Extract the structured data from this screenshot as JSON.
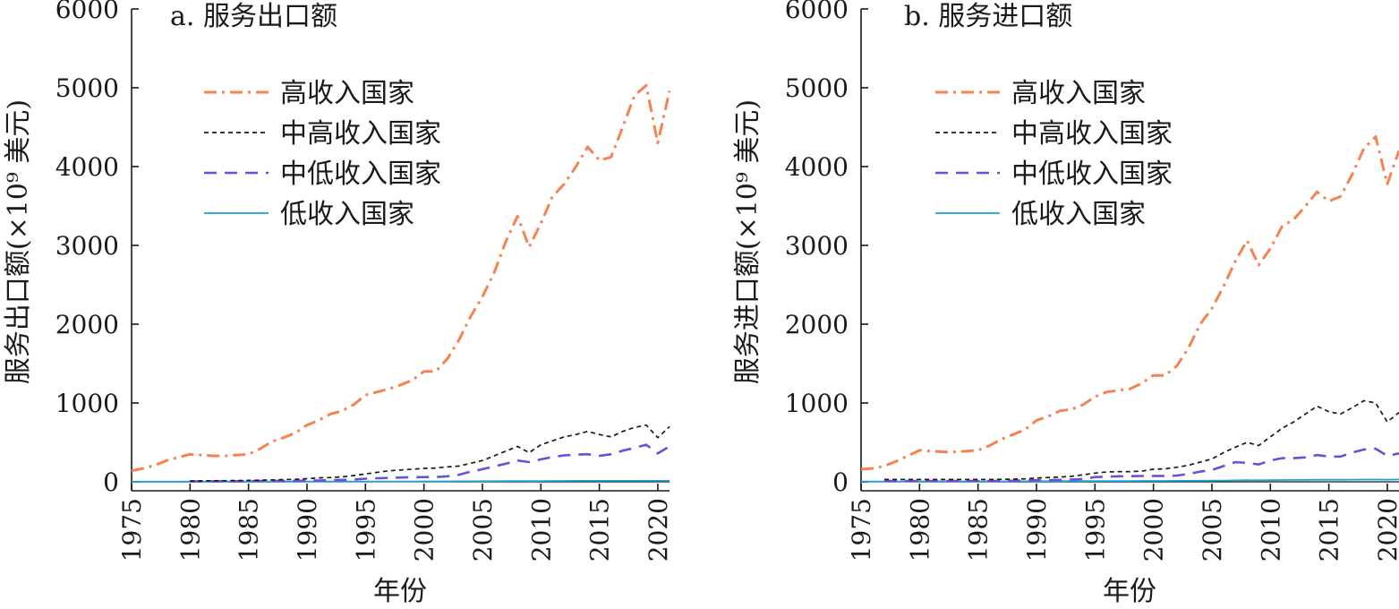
{
  "chart_data": [
    {
      "type": "line",
      "title": "a. 服务出口额",
      "xlabel": "年份",
      "ylabel": "服务出口额(×10⁹ 美元)",
      "xlim": [
        1975,
        2021
      ],
      "ylim": [
        0,
        6000
      ],
      "xticks": [
        1975,
        1980,
        1985,
        1990,
        1995,
        2000,
        2005,
        2010,
        2015,
        2020
      ],
      "yticks": [
        0,
        1000,
        2000,
        3000,
        4000,
        5000,
        6000
      ],
      "legend_position": "upper-left",
      "x": [
        1975,
        1976,
        1977,
        1978,
        1979,
        1980,
        1981,
        1982,
        1983,
        1984,
        1985,
        1986,
        1987,
        1988,
        1989,
        1990,
        1991,
        1992,
        1993,
        1994,
        1995,
        1996,
        1997,
        1998,
        1999,
        2000,
        2001,
        2002,
        2003,
        2004,
        2005,
        2006,
        2007,
        2008,
        2009,
        2010,
        2011,
        2012,
        2013,
        2014,
        2015,
        2016,
        2017,
        2018,
        2019,
        2020,
        2021
      ],
      "series": [
        {
          "name": "高收入国家",
          "color": "#f5824f",
          "dash": "dashdot",
          "values": [
            140,
            170,
            210,
            270,
            310,
            350,
            340,
            330,
            330,
            340,
            350,
            420,
            510,
            560,
            620,
            720,
            780,
            860,
            900,
            980,
            1100,
            1140,
            1180,
            1230,
            1290,
            1400,
            1400,
            1560,
            1800,
            2100,
            2350,
            2650,
            3050,
            3370,
            2980,
            3280,
            3620,
            3780,
            4000,
            4250,
            4080,
            4120,
            4500,
            4900,
            5030,
            4300,
            4960
          ]
        },
        {
          "name": "中高收入国家",
          "color": "#1a1a1a",
          "dash": "dotted",
          "values": [
            null,
            null,
            null,
            null,
            null,
            10,
            12,
            14,
            15,
            16,
            18,
            20,
            24,
            28,
            32,
            40,
            50,
            55,
            62,
            80,
            100,
            120,
            140,
            150,
            160,
            170,
            175,
            190,
            200,
            235,
            270,
            330,
            390,
            450,
            370,
            470,
            520,
            570,
            600,
            640,
            600,
            570,
            640,
            690,
            720,
            560,
            700
          ]
        },
        {
          "name": "中低收入国家",
          "color": "#6a4fd8",
          "dash": "dashed",
          "values": [
            null,
            null,
            null,
            null,
            null,
            5,
            6,
            7,
            8,
            8,
            9,
            10,
            11,
            12,
            13,
            15,
            17,
            20,
            24,
            30,
            40,
            45,
            50,
            55,
            58,
            60,
            60,
            70,
            90,
            130,
            160,
            195,
            230,
            270,
            250,
            285,
            315,
            335,
            345,
            350,
            330,
            350,
            395,
            430,
            470,
            360,
            450
          ]
        },
        {
          "name": "低收入国家",
          "color": "#1fa0d8",
          "dash": "solid",
          "values": [
            2,
            2,
            2,
            2,
            2,
            3,
            3,
            3,
            3,
            3,
            3,
            3,
            3,
            3,
            3,
            4,
            4,
            4,
            4,
            4,
            5,
            5,
            5,
            5,
            5,
            6,
            6,
            6,
            7,
            7,
            8,
            8,
            9,
            10,
            9,
            10,
            11,
            11,
            12,
            12,
            12,
            12,
            13,
            13,
            14,
            12,
            14
          ]
        }
      ]
    },
    {
      "type": "line",
      "title": "b. 服务进口额",
      "xlabel": "年份",
      "ylabel": "服务进口额(×10⁹ 美元)",
      "xlim": [
        1975,
        2021
      ],
      "ylim": [
        0,
        6000
      ],
      "xticks": [
        1975,
        1980,
        1985,
        1990,
        1995,
        2000,
        2005,
        2010,
        2015,
        2020
      ],
      "yticks": [
        0,
        1000,
        2000,
        3000,
        4000,
        5000,
        6000
      ],
      "legend_position": "upper-left",
      "x": [
        1975,
        1976,
        1977,
        1978,
        1979,
        1980,
        1981,
        1982,
        1983,
        1984,
        1985,
        1986,
        1987,
        1988,
        1989,
        1990,
        1991,
        1992,
        1993,
        1994,
        1995,
        1996,
        1997,
        1998,
        1999,
        2000,
        2001,
        2002,
        2003,
        2004,
        2005,
        2006,
        2007,
        2008,
        2009,
        2010,
        2011,
        2012,
        2013,
        2014,
        2015,
        2016,
        2017,
        2018,
        2019,
        2020,
        2021
      ],
      "series": [
        {
          "name": "高收入国家",
          "color": "#f5824f",
          "dash": "dashdot",
          "values": [
            160,
            170,
            200,
            260,
            330,
            400,
            390,
            380,
            380,
            390,
            400,
            460,
            540,
            600,
            660,
            780,
            830,
            900,
            920,
            980,
            1080,
            1140,
            1160,
            1180,
            1250,
            1350,
            1350,
            1470,
            1700,
            2000,
            2200,
            2480,
            2800,
            3060,
            2750,
            2960,
            3240,
            3330,
            3500,
            3680,
            3560,
            3620,
            3900,
            4230,
            4380,
            3780,
            4200
          ]
        },
        {
          "name": "中高收入国家",
          "color": "#1a1a1a",
          "dash": "dotted",
          "values": [
            null,
            null,
            30,
            30,
            30,
            30,
            30,
            30,
            30,
            30,
            30,
            30,
            32,
            34,
            38,
            48,
            55,
            60,
            70,
            90,
            110,
            125,
            130,
            130,
            135,
            160,
            165,
            185,
            210,
            250,
            290,
            370,
            440,
            500,
            460,
            570,
            680,
            760,
            860,
            960,
            890,
            860,
            940,
            1030,
            1000,
            760,
            880
          ]
        },
        {
          "name": "中低收入国家",
          "color": "#6a4fd8",
          "dash": "dashed",
          "values": [
            null,
            null,
            10,
            10,
            10,
            10,
            10,
            10,
            10,
            10,
            10,
            10,
            12,
            14,
            16,
            20,
            22,
            24,
            28,
            35,
            60,
            65,
            70,
            72,
            74,
            75,
            75,
            80,
            100,
            130,
            150,
            200,
            250,
            240,
            220,
            270,
            300,
            300,
            310,
            340,
            320,
            320,
            370,
            410,
            420,
            330,
            360
          ]
        },
        {
          "name": "低收入国家",
          "color": "#1fa0d8",
          "dash": "solid",
          "values": [
            5,
            5,
            5,
            5,
            5,
            6,
            6,
            6,
            6,
            6,
            6,
            6,
            6,
            7,
            7,
            8,
            8,
            8,
            9,
            9,
            10,
            10,
            10,
            10,
            11,
            11,
            11,
            12,
            13,
            14,
            15,
            16,
            18,
            20,
            19,
            21,
            23,
            24,
            25,
            26,
            26,
            26,
            27,
            28,
            29,
            27,
            29
          ]
        }
      ]
    }
  ]
}
